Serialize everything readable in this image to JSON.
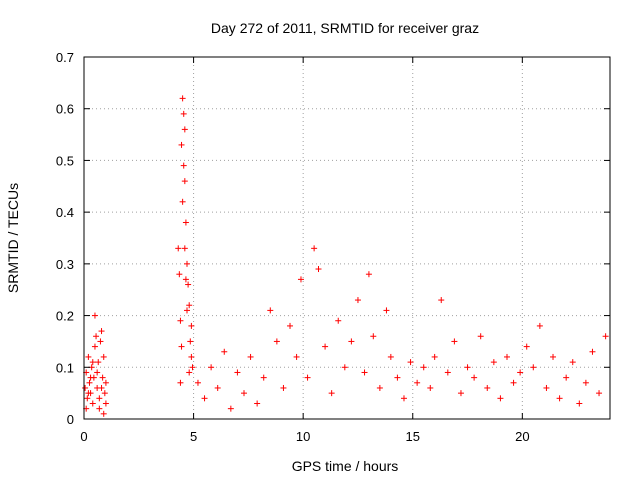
{
  "chart_data": {
    "type": "scatter",
    "title": "Day 272 of 2011, SRMTID for receiver graz",
    "xlabel": "GPS time / hours",
    "ylabel": "SRMTID / TECUs",
    "xlim": [
      0,
      24
    ],
    "ylim": [
      0,
      0.7
    ],
    "xticks": [
      0,
      5,
      10,
      15,
      20
    ],
    "yticks": [
      0,
      0.1,
      0.2,
      0.3,
      0.4,
      0.5,
      0.6,
      0.7
    ],
    "xtick_labels": [
      "0",
      "5",
      "10",
      "15",
      "20"
    ],
    "ytick_labels": [
      "0",
      "0.1",
      "0.2",
      "0.3",
      "0.4",
      "0.5",
      "0.6",
      "0.7"
    ],
    "grid": true,
    "marker": "+",
    "series_color": "#ff0000",
    "series": [
      {
        "points": [
          [
            0.05,
            0.06
          ],
          [
            0.1,
            0.09
          ],
          [
            0.15,
            0.04
          ],
          [
            0.2,
            0.12
          ],
          [
            0.25,
            0.07
          ],
          [
            0.3,
            0.05
          ],
          [
            0.35,
            0.1
          ],
          [
            0.4,
            0.03
          ],
          [
            0.45,
            0.08
          ],
          [
            0.5,
            0.2
          ],
          [
            0.55,
            0.16
          ],
          [
            0.6,
            0.06
          ],
          [
            0.65,
            0.11
          ],
          [
            0.7,
            0.04
          ],
          [
            0.75,
            0.15
          ],
          [
            0.8,
            0.17
          ],
          [
            0.85,
            0.08
          ],
          [
            0.9,
            0.12
          ],
          [
            0.95,
            0.05
          ],
          [
            1.0,
            0.03
          ],
          [
            0.1,
            0.02
          ],
          [
            0.2,
            0.05
          ],
          [
            0.3,
            0.08
          ],
          [
            0.4,
            0.11
          ],
          [
            0.5,
            0.14
          ],
          [
            0.6,
            0.09
          ],
          [
            0.7,
            0.02
          ],
          [
            0.8,
            0.06
          ],
          [
            0.9,
            0.01
          ],
          [
            1.0,
            0.07
          ],
          [
            4.3,
            0.33
          ],
          [
            4.35,
            0.28
          ],
          [
            4.4,
            0.19
          ],
          [
            4.45,
            0.53
          ],
          [
            4.5,
            0.62
          ],
          [
            4.55,
            0.59
          ],
          [
            4.6,
            0.46
          ],
          [
            4.65,
            0.38
          ],
          [
            4.7,
            0.3
          ],
          [
            4.75,
            0.26
          ],
          [
            4.8,
            0.22
          ],
          [
            4.85,
            0.15
          ],
          [
            4.9,
            0.12
          ],
          [
            4.95,
            0.1
          ],
          [
            4.5,
            0.42
          ],
          [
            4.55,
            0.49
          ],
          [
            4.6,
            0.33
          ],
          [
            4.65,
            0.27
          ],
          [
            4.7,
            0.21
          ],
          [
            4.45,
            0.14
          ],
          [
            4.4,
            0.07
          ],
          [
            4.8,
            0.09
          ],
          [
            4.9,
            0.18
          ],
          [
            4.6,
            0.56
          ],
          [
            5.2,
            0.07
          ],
          [
            5.5,
            0.04
          ],
          [
            5.8,
            0.1
          ],
          [
            6.1,
            0.06
          ],
          [
            6.4,
            0.13
          ],
          [
            6.7,
            0.02
          ],
          [
            7.0,
            0.09
          ],
          [
            7.3,
            0.05
          ],
          [
            7.6,
            0.12
          ],
          [
            7.9,
            0.03
          ],
          [
            8.2,
            0.08
          ],
          [
            8.5,
            0.21
          ],
          [
            8.8,
            0.15
          ],
          [
            9.1,
            0.06
          ],
          [
            9.4,
            0.18
          ],
          [
            9.7,
            0.12
          ],
          [
            9.9,
            0.27
          ],
          [
            10.2,
            0.08
          ],
          [
            10.5,
            0.33
          ],
          [
            10.7,
            0.29
          ],
          [
            11.0,
            0.14
          ],
          [
            11.3,
            0.05
          ],
          [
            11.6,
            0.19
          ],
          [
            11.9,
            0.1
          ],
          [
            12.2,
            0.15
          ],
          [
            12.5,
            0.23
          ],
          [
            12.8,
            0.09
          ],
          [
            13.0,
            0.28
          ],
          [
            13.2,
            0.16
          ],
          [
            13.5,
            0.06
          ],
          [
            13.8,
            0.21
          ],
          [
            14.0,
            0.12
          ],
          [
            14.3,
            0.08
          ],
          [
            14.6,
            0.04
          ],
          [
            14.9,
            0.11
          ],
          [
            15.2,
            0.07
          ],
          [
            15.5,
            0.1
          ],
          [
            15.8,
            0.06
          ],
          [
            16.0,
            0.12
          ],
          [
            16.3,
            0.23
          ],
          [
            16.6,
            0.09
          ],
          [
            16.9,
            0.15
          ],
          [
            17.2,
            0.05
          ],
          [
            17.5,
            0.1
          ],
          [
            17.8,
            0.08
          ],
          [
            18.1,
            0.16
          ],
          [
            18.4,
            0.06
          ],
          [
            18.7,
            0.11
          ],
          [
            19.0,
            0.04
          ],
          [
            19.3,
            0.12
          ],
          [
            19.6,
            0.07
          ],
          [
            19.9,
            0.09
          ],
          [
            20.2,
            0.14
          ],
          [
            20.5,
            0.1
          ],
          [
            20.8,
            0.18
          ],
          [
            21.1,
            0.06
          ],
          [
            21.4,
            0.12
          ],
          [
            21.7,
            0.04
          ],
          [
            22.0,
            0.08
          ],
          [
            22.3,
            0.11
          ],
          [
            22.6,
            0.03
          ],
          [
            22.9,
            0.07
          ],
          [
            23.2,
            0.13
          ],
          [
            23.5,
            0.05
          ],
          [
            23.8,
            0.16
          ]
        ]
      }
    ]
  }
}
